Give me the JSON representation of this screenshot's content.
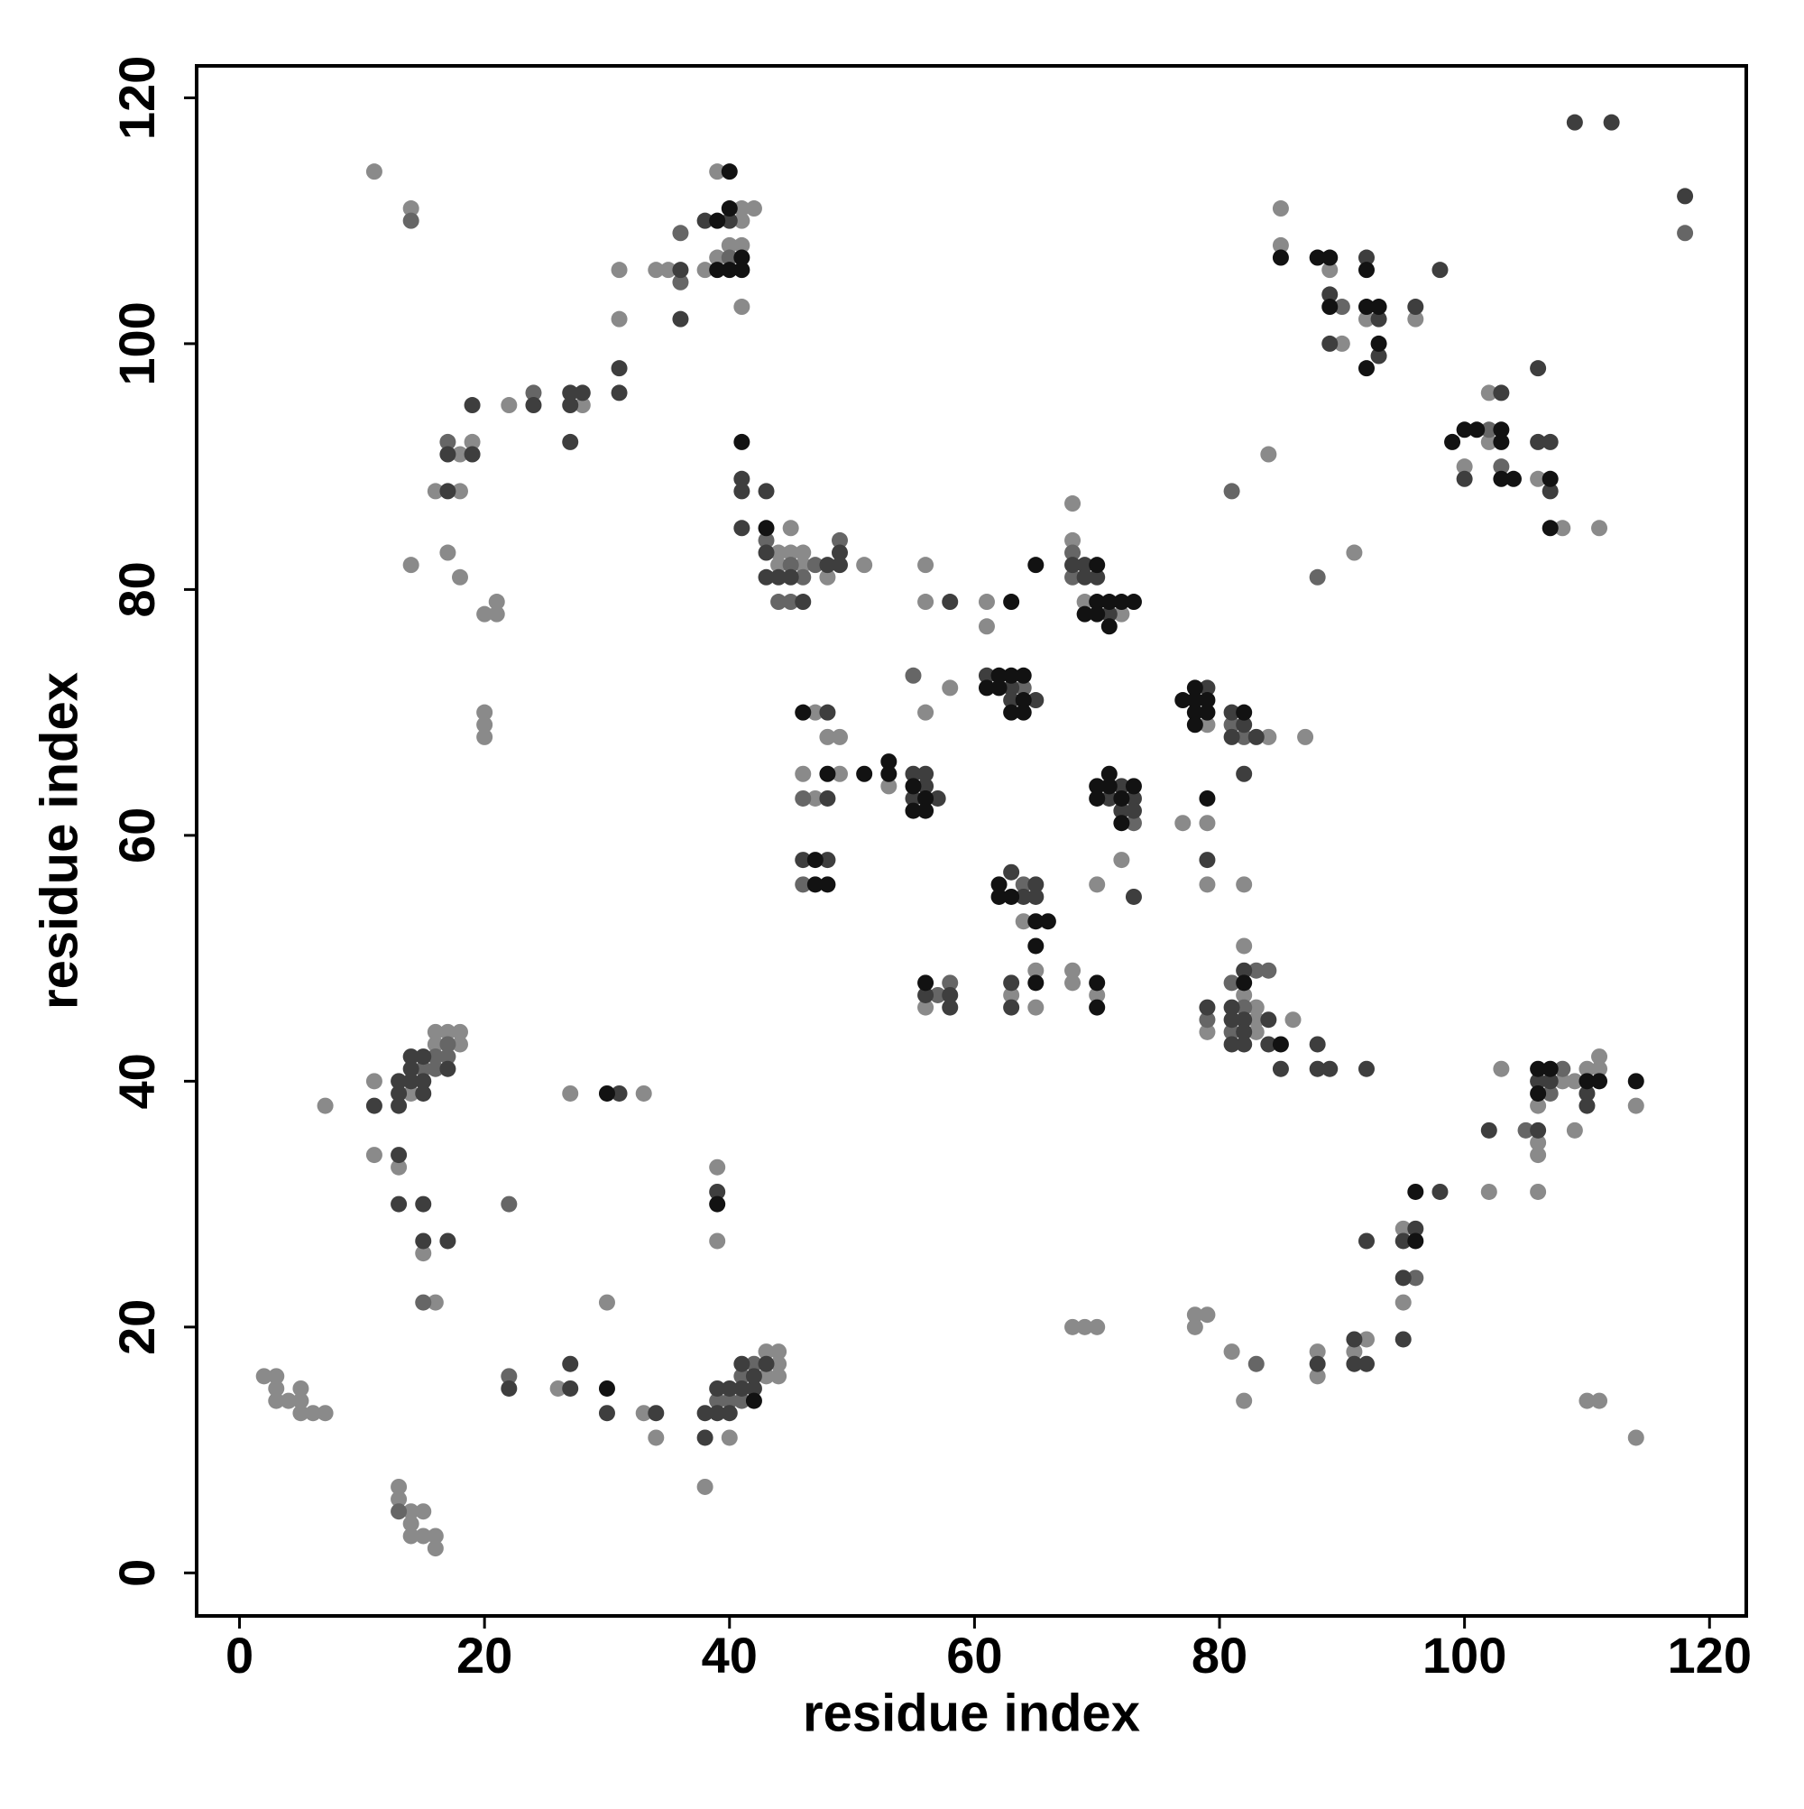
{
  "chart_data": {
    "type": "scatter",
    "x_label": "residue index",
    "y_label": "residue index",
    "xlim": [
      -3.5,
      123
    ],
    "ylim": [
      -3.5,
      122.6
    ],
    "xticks": [
      0,
      20,
      40,
      60,
      80,
      100,
      120
    ],
    "yticks": [
      0,
      20,
      40,
      60,
      80,
      100,
      120
    ],
    "series": [
      {
        "color": "#8a8a8a",
        "x": [
          11,
          14,
          39,
          41,
          42,
          41,
          39,
          40,
          41,
          38,
          34,
          35,
          31,
          41,
          31,
          22,
          28,
          18,
          19,
          16,
          18,
          14,
          17,
          18,
          20,
          21,
          21,
          20,
          20,
          20,
          44,
          45,
          46,
          44,
          46,
          51,
          48,
          45,
          47,
          48,
          49,
          46,
          49,
          47,
          53,
          56,
          56,
          56,
          58,
          61,
          61,
          68,
          68,
          69,
          72,
          72,
          70,
          64,
          65,
          63,
          65,
          56,
          68,
          68,
          70,
          79,
          84,
          87,
          77,
          79,
          79,
          82,
          79,
          82,
          82,
          83,
          83,
          83,
          86,
          85,
          85,
          89,
          92,
          96,
          90,
          102,
          102,
          100,
          106,
          108,
          111,
          84,
          91,
          2,
          3,
          3,
          3,
          4,
          5,
          5,
          5,
          6,
          7,
          7,
          11,
          11,
          13,
          14,
          16,
          17,
          18,
          18,
          16,
          15,
          16,
          13,
          13,
          14,
          14,
          15,
          14,
          15,
          16,
          16,
          26,
          27,
          33,
          30,
          33,
          34,
          43,
          43,
          44,
          44,
          44,
          40,
          38,
          39,
          39,
          68,
          69,
          70,
          78,
          79,
          78,
          81,
          82,
          88,
          88,
          91,
          92,
          95,
          95,
          102,
          103,
          106,
          106,
          106,
          108,
          109,
          109,
          106,
          110,
          111,
          111,
          114,
          110,
          111,
          114
        ],
        "y": [
          114,
          111,
          114,
          111,
          111,
          110,
          107,
          108,
          108,
          106,
          106,
          106,
          106,
          103,
          102,
          95,
          95,
          91,
          92,
          88,
          88,
          82,
          83,
          81,
          78,
          79,
          78,
          70,
          69,
          68,
          83,
          83,
          83,
          82,
          82,
          82,
          81,
          85,
          70,
          68,
          68,
          65,
          65,
          63,
          64,
          70,
          82,
          79,
          72,
          79,
          77,
          87,
          84,
          79,
          78,
          58,
          56,
          53,
          49,
          47,
          46,
          46,
          49,
          48,
          47,
          69,
          68,
          68,
          61,
          61,
          56,
          56,
          44,
          51,
          47,
          46,
          45,
          44,
          45,
          111,
          108,
          106,
          102,
          102,
          100,
          96,
          92,
          90,
          89,
          85,
          85,
          91,
          83,
          16,
          16,
          15,
          14,
          14,
          14,
          15,
          13,
          13,
          13,
          38,
          40,
          34,
          33,
          39,
          43,
          44,
          44,
          43,
          44,
          26,
          22,
          7,
          6,
          5,
          4,
          5,
          3,
          3,
          3,
          2,
          15,
          39,
          39,
          22,
          13,
          11,
          16,
          18,
          18,
          17,
          16,
          11,
          7,
          33,
          27,
          20,
          20,
          20,
          21,
          21,
          20,
          18,
          14,
          18,
          16,
          18,
          19,
          28,
          22,
          31,
          41,
          35,
          34,
          31,
          40,
          40,
          36,
          38,
          41,
          42,
          41,
          38,
          14,
          14,
          11
        ]
      },
      {
        "color": "#666666",
        "x": [
          14,
          36,
          40,
          36,
          24,
          17,
          43,
          45,
          47,
          49,
          46,
          44,
          45,
          46,
          46,
          55,
          64,
          68,
          68,
          73,
          64,
          57,
          58,
          81,
          82,
          79,
          81,
          83,
          84,
          82,
          81,
          90,
          102,
          103,
          81,
          88,
          118,
          15,
          16,
          16,
          17,
          17,
          15,
          22,
          13,
          22,
          39,
          40,
          41,
          41,
          42,
          83,
          96,
          105,
          108,
          107
        ],
        "y": [
          110,
          109,
          107,
          105,
          96,
          92,
          84,
          82,
          82,
          84,
          81,
          79,
          79,
          63,
          56,
          73,
          72,
          83,
          81,
          61,
          56,
          47,
          48,
          69,
          68,
          45,
          48,
          49,
          49,
          46,
          44,
          103,
          93,
          90,
          88,
          81,
          109,
          41,
          42,
          41,
          43,
          42,
          22,
          30,
          5,
          16,
          14,
          14,
          14,
          16,
          17,
          17,
          24,
          36,
          41,
          39
        ]
      },
      {
        "color": "#3e3e3e",
        "x": [
          38,
          40,
          36,
          36,
          31,
          31,
          24,
          27,
          27,
          28,
          27,
          19,
          17,
          19,
          17,
          41,
          41,
          43,
          41,
          43,
          48,
          49,
          49,
          43,
          44,
          45,
          46,
          48,
          48,
          46,
          48,
          55,
          56,
          56,
          55,
          57,
          58,
          61,
          63,
          63,
          65,
          68,
          69,
          69,
          70,
          71,
          72,
          71,
          73,
          72,
          73,
          73,
          63,
          64,
          65,
          65,
          63,
          63,
          56,
          58,
          58,
          79,
          81,
          82,
          81,
          83,
          82,
          79,
          79,
          82,
          81,
          81,
          82,
          84,
          82,
          81,
          82,
          84,
          85,
          88,
          88,
          89,
          92,
          92,
          98,
          89,
          93,
          96,
          89,
          93,
          103,
          100,
          106,
          106,
          107,
          107,
          109,
          112,
          118,
          11,
          13,
          13,
          13,
          13,
          14,
          14,
          14,
          15,
          15,
          15,
          17,
          13,
          15,
          15,
          17,
          22,
          27,
          27,
          31,
          30,
          34,
          38,
          39,
          40,
          39,
          40,
          41,
          41,
          42,
          42,
          43,
          38,
          39,
          88,
          91,
          91,
          92,
          92,
          95,
          96,
          95,
          95,
          98,
          102,
          106,
          106,
          107,
          110,
          110
        ],
        "y": [
          110,
          110,
          106,
          102,
          98,
          96,
          95,
          96,
          95,
          96,
          92,
          95,
          91,
          91,
          88,
          89,
          88,
          88,
          85,
          83,
          82,
          83,
          82,
          81,
          81,
          81,
          79,
          70,
          63,
          58,
          58,
          65,
          65,
          64,
          63,
          63,
          79,
          73,
          72,
          71,
          71,
          82,
          82,
          81,
          81,
          78,
          64,
          63,
          63,
          62,
          62,
          55,
          57,
          55,
          56,
          55,
          48,
          46,
          47,
          47,
          46,
          72,
          70,
          69,
          68,
          68,
          65,
          58,
          46,
          49,
          46,
          45,
          45,
          45,
          44,
          43,
          43,
          43,
          41,
          43,
          41,
          41,
          41,
          107,
          106,
          104,
          102,
          103,
          100,
          99,
          96,
          89,
          98,
          92,
          92,
          88,
          118,
          118,
          112,
          38,
          34,
          40,
          39,
          38,
          42,
          41,
          40,
          42,
          40,
          39,
          41,
          30,
          30,
          27,
          27,
          15,
          17,
          15,
          39,
          13,
          13,
          13,
          13,
          13,
          15,
          15,
          15,
          17,
          15,
          16,
          17,
          11,
          31,
          17,
          19,
          17,
          17,
          27,
          27,
          28,
          24,
          19,
          31,
          36,
          36,
          40,
          40,
          39,
          38
        ]
      },
      {
        "color": "#121212",
        "x": [
          40,
          39,
          40,
          41,
          39,
          40,
          41,
          41,
          43,
          46,
          48,
          47,
          47,
          48,
          51,
          53,
          53,
          55,
          56,
          55,
          56,
          63,
          62,
          63,
          64,
          61,
          62,
          64,
          63,
          64,
          65,
          70,
          70,
          71,
          72,
          73,
          69,
          70,
          71,
          71,
          70,
          71,
          73,
          70,
          72,
          72,
          62,
          62,
          63,
          65,
          66,
          65,
          65,
          56,
          70,
          70,
          77,
          78,
          78,
          79,
          78,
          79,
          78,
          82,
          79,
          82,
          85,
          85,
          88,
          89,
          92,
          89,
          92,
          93,
          93,
          92,
          99,
          100,
          101,
          103,
          103,
          103,
          104,
          107,
          107,
          30,
          30,
          42,
          39,
          96,
          96,
          106,
          107,
          106,
          110,
          111,
          114
        ],
        "y": [
          114,
          110,
          111,
          107,
          106,
          106,
          106,
          92,
          85,
          70,
          65,
          58,
          56,
          56,
          65,
          66,
          65,
          64,
          63,
          62,
          62,
          79,
          73,
          73,
          73,
          72,
          72,
          71,
          70,
          70,
          82,
          82,
          79,
          79,
          79,
          79,
          78,
          78,
          77,
          65,
          64,
          64,
          64,
          63,
          63,
          61,
          56,
          55,
          55,
          53,
          53,
          51,
          48,
          48,
          48,
          46,
          71,
          72,
          71,
          71,
          70,
          70,
          69,
          70,
          63,
          48,
          43,
          107,
          107,
          107,
          106,
          103,
          103,
          103,
          100,
          98,
          92,
          93,
          93,
          93,
          92,
          89,
          89,
          89,
          85,
          39,
          15,
          14,
          30,
          27,
          31,
          41,
          41,
          39,
          40,
          40,
          40
        ]
      }
    ]
  }
}
